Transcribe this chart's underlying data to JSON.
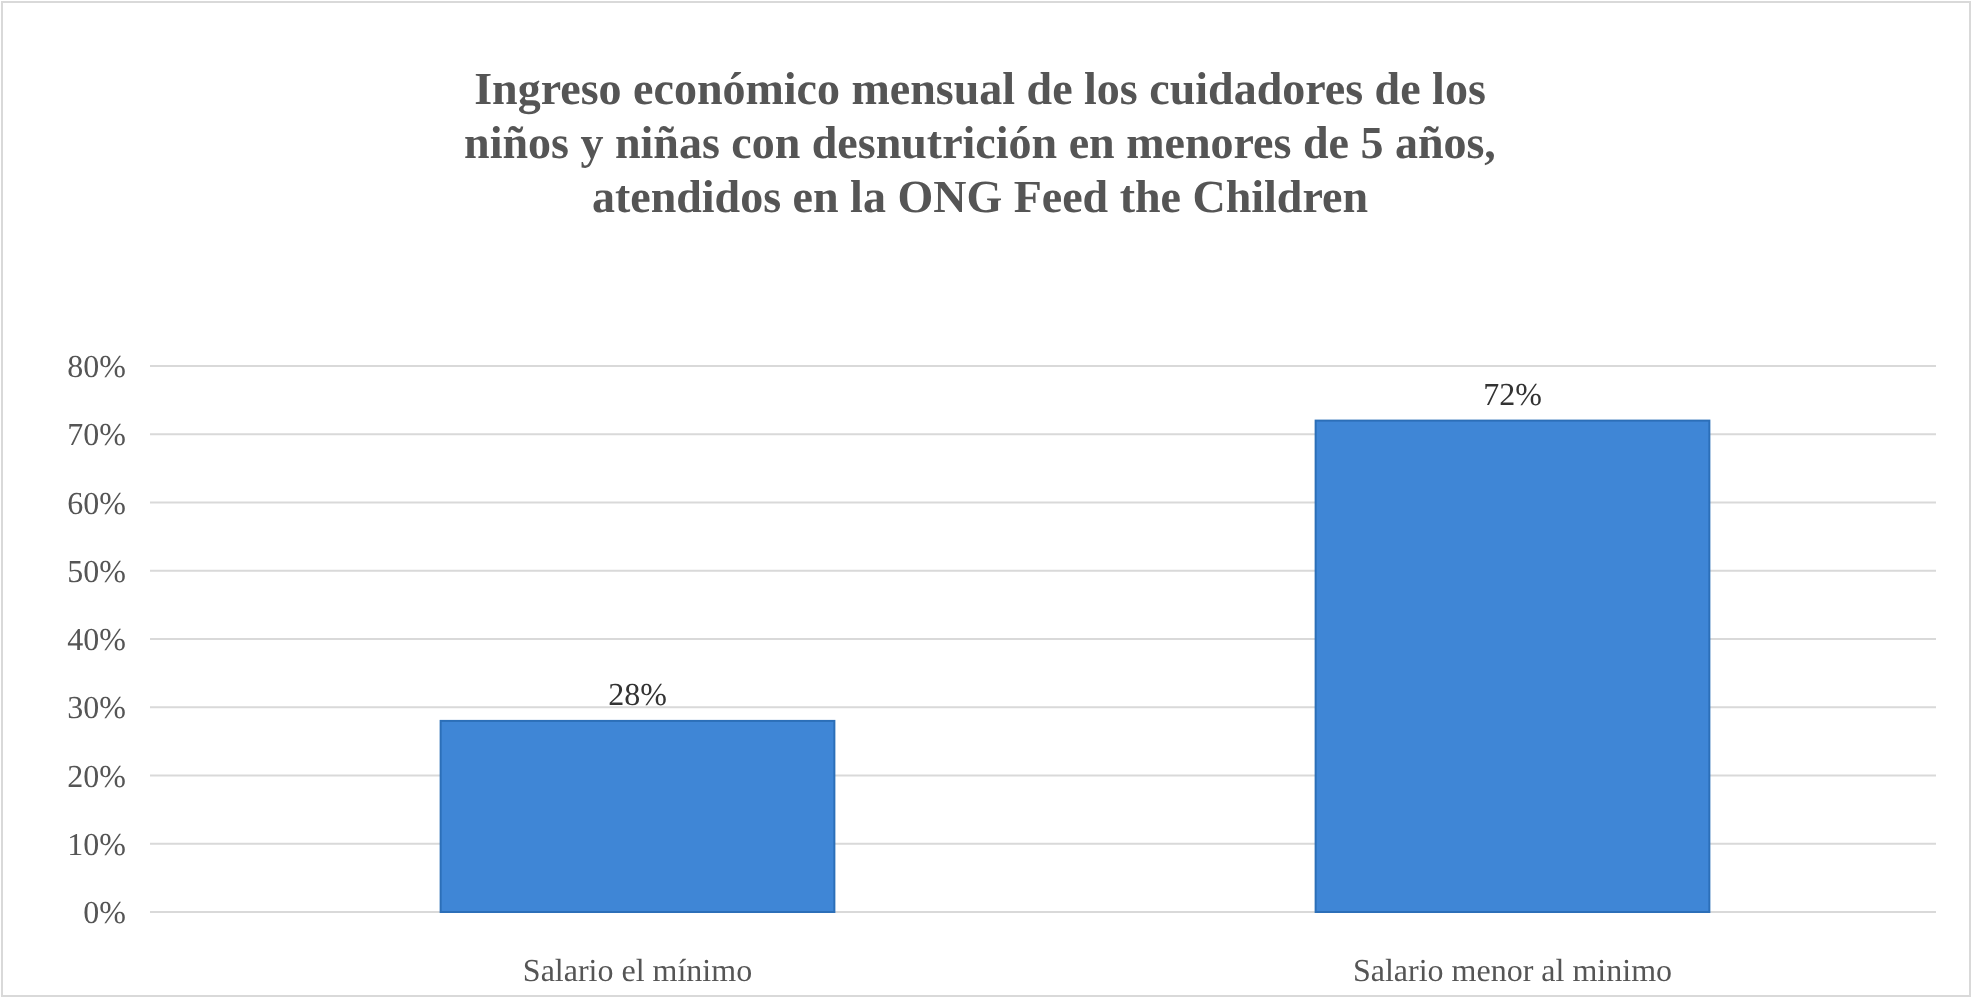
{
  "chart_data": {
    "type": "bar",
    "title": "Ingreso económico mensual de los cuidadores de los niños y niñas con desnutrición en menores de 5 años, atendidos en la ONG Feed the Children",
    "categories": [
      "Salario el mínimo",
      "Salario menor al minimo"
    ],
    "values": [
      28,
      72
    ],
    "value_labels": [
      "28%",
      "72%"
    ],
    "color": "#3f86d6",
    "ylim": [
      0,
      80
    ],
    "yticks": [
      {
        "value": 0,
        "label": "0%"
      },
      {
        "value": 10,
        "label": "10%"
      },
      {
        "value": 20,
        "label": "20%"
      },
      {
        "value": 30,
        "label": "30%"
      },
      {
        "value": 40,
        "label": "40%"
      },
      {
        "value": 50,
        "label": "50%"
      },
      {
        "value": 60,
        "label": "60%"
      },
      {
        "value": 70,
        "label": "70%"
      },
      {
        "value": 80,
        "label": "80%"
      }
    ],
    "grid": "y"
  }
}
